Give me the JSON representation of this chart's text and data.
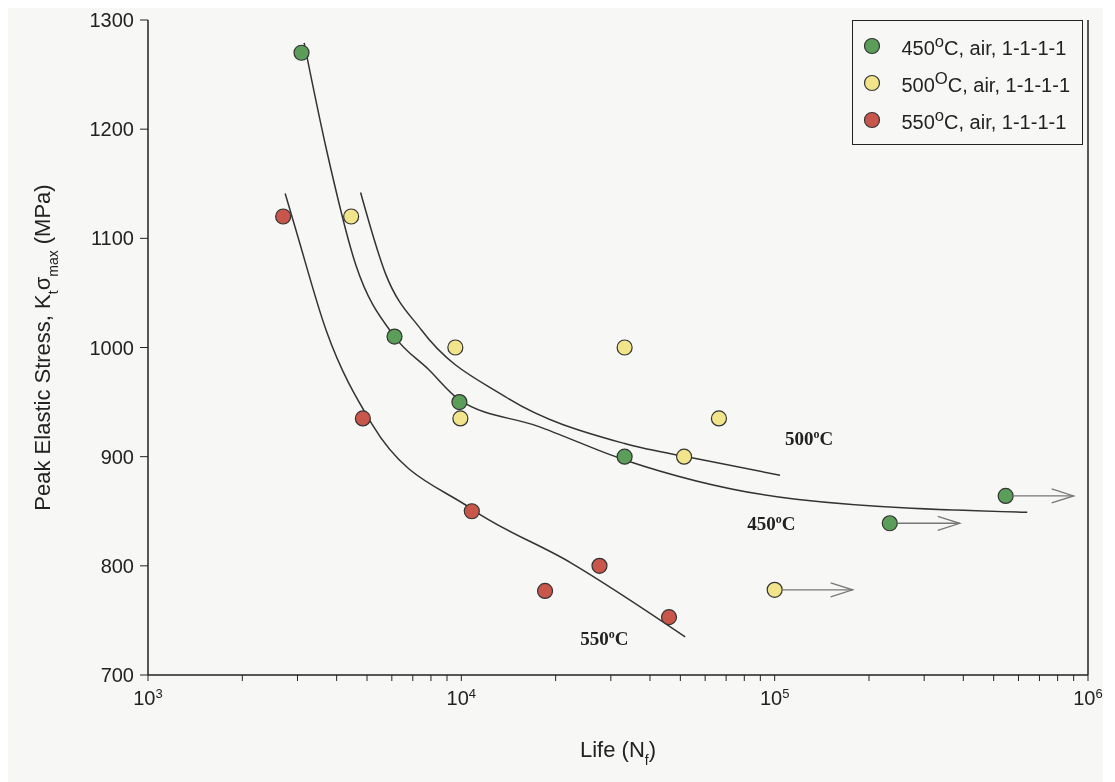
{
  "chart_data": {
    "type": "scatter",
    "xlabel": "Life (N$_{f}$)",
    "ylabel": "Peak Elastic Stress, K$_{t}$σ$_{max}$ (MPa)",
    "log": "x",
    "marker": "circle",
    "legend": "top right",
    "xlim": [
      1000,
      1000000
    ],
    "ylim": [
      700,
      1300
    ],
    "xticks": [
      {
        "value": 1000,
        "label": "10$^{3}$"
      },
      {
        "value": 2000,
        "label": null
      },
      {
        "value": 3000,
        "label": null
      },
      {
        "value": 4000,
        "label": null
      },
      {
        "value": 5000,
        "label": null
      },
      {
        "value": 6000,
        "label": null
      },
      {
        "value": 7000,
        "label": null
      },
      {
        "value": 8000,
        "label": null
      },
      {
        "value": 9000,
        "label": null
      },
      {
        "value": 10000,
        "label": "10$^{4}$"
      },
      {
        "value": 20000,
        "label": null
      },
      {
        "value": 30000,
        "label": null
      },
      {
        "value": 40000,
        "label": null
      },
      {
        "value": 50000,
        "label": null
      },
      {
        "value": 60000,
        "label": null
      },
      {
        "value": 70000,
        "label": null
      },
      {
        "value": 80000,
        "label": null
      },
      {
        "value": 90000,
        "label": null
      },
      {
        "value": 100000,
        "label": "10$^{5}$"
      },
      {
        "value": 200000,
        "label": null
      },
      {
        "value": 300000,
        "label": null
      },
      {
        "value": 400000,
        "label": null
      },
      {
        "value": 500000,
        "label": null
      },
      {
        "value": 600000,
        "label": null
      },
      {
        "value": 700000,
        "label": null
      },
      {
        "value": 800000,
        "label": null
      },
      {
        "value": 900000,
        "label": null
      },
      {
        "value": 1000000,
        "label": "10$^{6}$"
      }
    ],
    "yticks": [
      700,
      800,
      900,
      1000,
      1100,
      1200,
      1300
    ],
    "series": [
      {
        "name": "450$^{o}$C, air, 1-1-1-1",
        "color": "#5a9e5a",
        "x": [
          3090,
          6120,
          9860,
          33200,
          233000,
          546000
        ],
        "values": [
          1270,
          1010,
          950,
          900,
          839,
          864
        ]
      },
      {
        "name": "500$^{O}$C, air, 1-1-1-1",
        "color": "#f2e48a",
        "x": [
          4450,
          9570,
          9930,
          33200,
          51400,
          66400,
          100000
        ],
        "values": [
          1120,
          1000,
          935,
          1000,
          900,
          935,
          778
        ]
      },
      {
        "name": "550$^{o}$C, air, 1-1-1-1",
        "color": "#c8564a",
        "x": [
          2700,
          4850,
          10800,
          18500,
          27600,
          46000
        ],
        "values": [
          1120,
          935,
          850,
          777,
          800,
          753
        ]
      },
      {
        "type": "line",
        "marker": "none",
        "color": "#333333",
        "x": [
          4770,
          5740,
          7460,
          13800,
          33200,
          56500,
          104000
        ],
        "values": [
          1142,
          1067,
          1016,
          955,
          912,
          898,
          883
        ]
      },
      {
        "type": "line",
        "marker": "none",
        "color": "#333333",
        "x": [
          3150,
          3700,
          4600,
          6120,
          7850,
          9860,
          17500,
          33200,
          117000,
          640000
        ],
        "values": [
          1279,
          1183,
          1076,
          1010,
          980,
          952,
          928,
          897,
          861,
          849
        ]
      },
      {
        "type": "line",
        "marker": "none",
        "color": "#333333",
        "x": [
          2740,
          2970,
          3700,
          5180,
          10800,
          22300,
          51800
        ],
        "values": [
          1141,
          1107,
          1016,
          930,
          852,
          803,
          735
        ]
      }
    ],
    "annotations": [
      "500$^{o}$C",
      "450$^{o}$C",
      "550$^{o}$C"
    ]
  }
}
